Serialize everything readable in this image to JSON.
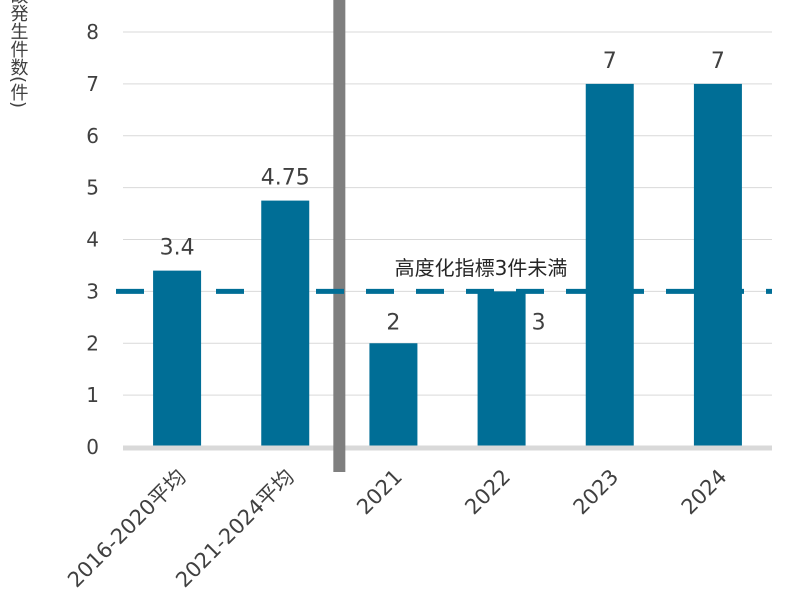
{
  "chart_data": {
    "type": "bar",
    "title": "",
    "ylabel": "事故発生件数(件)",
    "xlabel": "",
    "ylim": [
      0,
      8
    ],
    "yticks": [
      0,
      1,
      2,
      3,
      4,
      5,
      6,
      7,
      8
    ],
    "grid": true,
    "categories": [
      "2016-2020平均",
      "2021-2024平均",
      "2021",
      "2022",
      "2023",
      "2024"
    ],
    "values": [
      3.4,
      4.75,
      2,
      3,
      7,
      7
    ],
    "data_labels": [
      "3.4",
      "4.75",
      "2",
      "3",
      "7",
      "7"
    ],
    "bar_color": "#006E96",
    "separator_after_category": 1,
    "separator_color": "#7F7F7F",
    "threshold": {
      "value": 3,
      "label": "高度化指標3件未満",
      "color": "#006E96",
      "style": "dashed"
    }
  }
}
